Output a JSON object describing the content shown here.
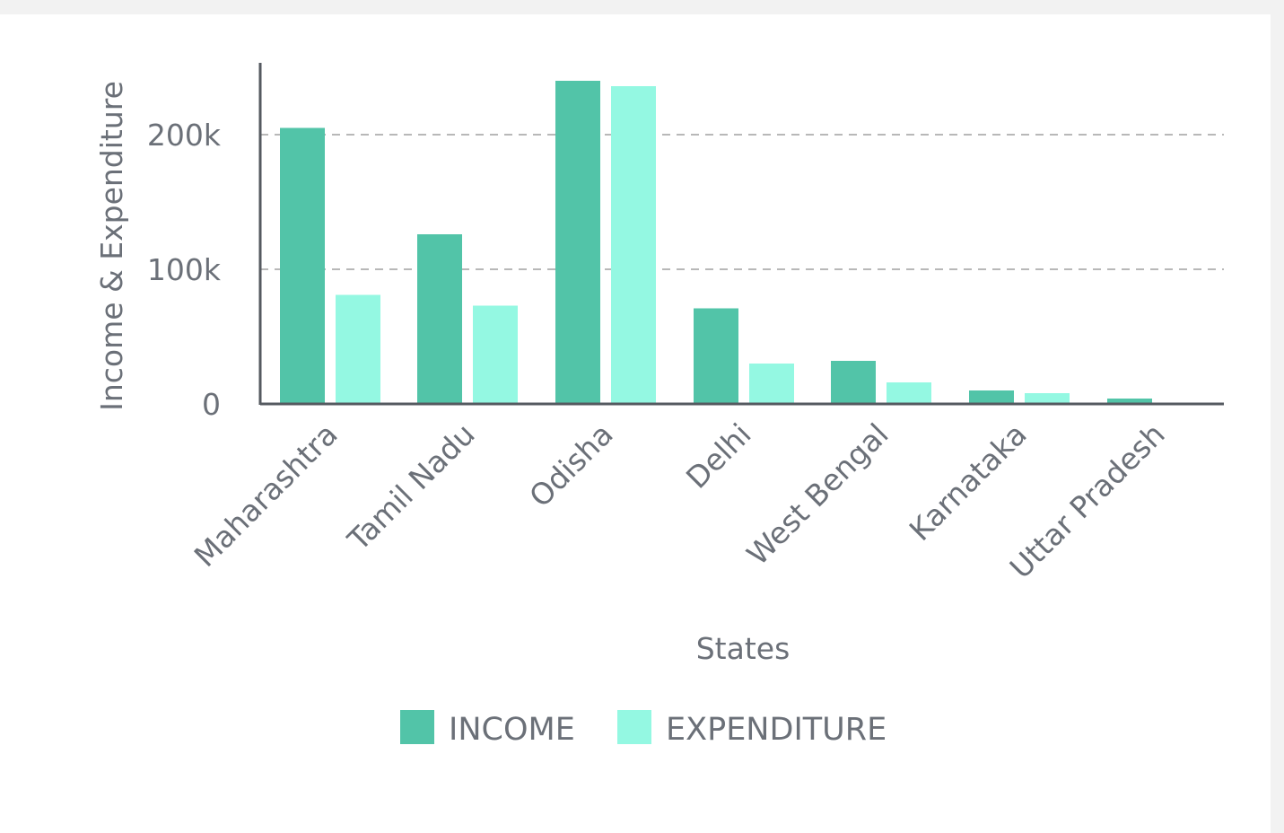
{
  "chart_data": {
    "type": "bar",
    "title": "",
    "xlabel": "States",
    "ylabel": "Income & Expenditure",
    "ylim": [
      0,
      250000
    ],
    "yticks": [
      0,
      100000,
      200000
    ],
    "ytick_labels": [
      "0",
      "100k",
      "200k"
    ],
    "gridlines": "dashed horizontal at 100k and 200k",
    "legend_position": "bottom-center",
    "categories": [
      "Maharashtra",
      "Tamil Nadu",
      "Odisha",
      "Delhi",
      "West Bengal",
      "Karnataka",
      "Uttar Pradesh"
    ],
    "series": [
      {
        "name": "INCOME",
        "color": "#52c4a8",
        "values": [
          205000,
          126000,
          240000,
          71000,
          32000,
          10000,
          4000
        ]
      },
      {
        "name": "EXPENDITURE",
        "color": "#94f8e2",
        "values": [
          81000,
          73000,
          236000,
          30000,
          16000,
          8000,
          0
        ]
      }
    ]
  }
}
